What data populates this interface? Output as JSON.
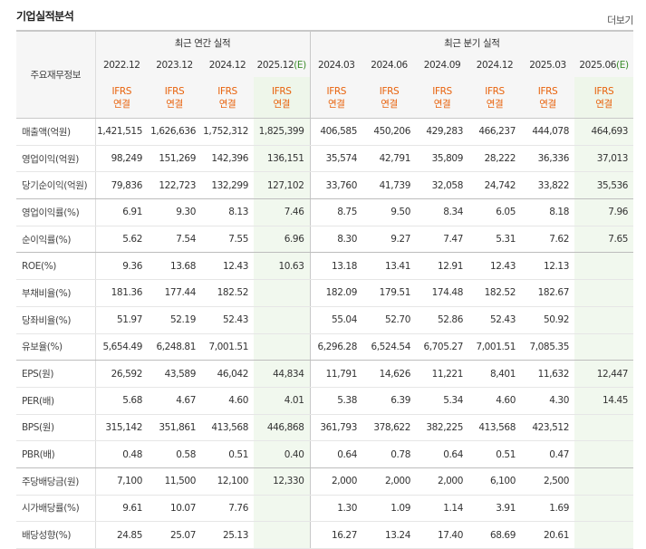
{
  "page": {
    "title": "기업실적분석",
    "more_label": "더보기"
  },
  "table": {
    "row_header": "주요재무정보",
    "annual_group": "최근 연간 실적",
    "quarter_group": "최근 분기 실적",
    "estimate_mark": "(E)",
    "annual_periods": [
      "2022.12",
      "2023.12",
      "2024.12",
      "2025.12"
    ],
    "quarter_periods": [
      "2024.03",
      "2024.06",
      "2024.09",
      "2024.12",
      "2025.03",
      "2025.06"
    ],
    "basis_label_1": "IFRS",
    "basis_label_2": "연결",
    "rows": [
      {
        "label": "매출액(억원)",
        "values": [
          "1,421,515",
          "1,626,636",
          "1,752,312",
          "1,825,399",
          "406,585",
          "450,206",
          "429,283",
          "466,237",
          "444,078",
          "464,693"
        ]
      },
      {
        "label": "영업이익(억원)",
        "values": [
          "98,249",
          "151,269",
          "142,396",
          "136,151",
          "35,574",
          "42,791",
          "35,809",
          "28,222",
          "36,336",
          "37,013"
        ]
      },
      {
        "label": "당기순이익(억원)",
        "values": [
          "79,836",
          "122,723",
          "132,299",
          "127,102",
          "33,760",
          "41,739",
          "32,058",
          "24,742",
          "33,822",
          "35,536"
        ]
      },
      {
        "label": "영업이익률(%)",
        "values": [
          "6.91",
          "9.30",
          "8.13",
          "7.46",
          "8.75",
          "9.50",
          "8.34",
          "6.05",
          "8.18",
          "7.96"
        ]
      },
      {
        "label": "순이익률(%)",
        "values": [
          "5.62",
          "7.54",
          "7.55",
          "6.96",
          "8.30",
          "9.27",
          "7.47",
          "5.31",
          "7.62",
          "7.65"
        ]
      },
      {
        "label": "ROE(%)",
        "values": [
          "9.36",
          "13.68",
          "12.43",
          "10.63",
          "13.18",
          "13.41",
          "12.91",
          "12.43",
          "12.13",
          ""
        ]
      },
      {
        "label": "부채비율(%)",
        "values": [
          "181.36",
          "177.44",
          "182.52",
          "",
          "182.09",
          "179.51",
          "174.48",
          "182.52",
          "182.67",
          ""
        ]
      },
      {
        "label": "당좌비율(%)",
        "values": [
          "51.97",
          "52.19",
          "52.43",
          "",
          "55.04",
          "52.70",
          "52.86",
          "52.43",
          "50.92",
          ""
        ]
      },
      {
        "label": "유보율(%)",
        "values": [
          "5,654.49",
          "6,248.81",
          "7,001.51",
          "",
          "6,296.28",
          "6,524.54",
          "6,705.27",
          "7,001.51",
          "7,085.35",
          ""
        ]
      },
      {
        "label": "EPS(원)",
        "values": [
          "26,592",
          "43,589",
          "46,042",
          "44,834",
          "11,791",
          "14,626",
          "11,221",
          "8,401",
          "11,632",
          "12,447"
        ]
      },
      {
        "label": "PER(배)",
        "values": [
          "5.68",
          "4.67",
          "4.60",
          "4.01",
          "5.38",
          "6.39",
          "5.34",
          "4.60",
          "4.30",
          "14.45"
        ]
      },
      {
        "label": "BPS(원)",
        "values": [
          "315,142",
          "351,861",
          "413,568",
          "446,868",
          "361,793",
          "378,622",
          "382,225",
          "413,568",
          "423,512",
          ""
        ]
      },
      {
        "label": "PBR(배)",
        "values": [
          "0.48",
          "0.58",
          "0.51",
          "0.40",
          "0.64",
          "0.78",
          "0.64",
          "0.51",
          "0.47",
          ""
        ]
      },
      {
        "label": "주당배당금(원)",
        "values": [
          "7,100",
          "11,500",
          "12,100",
          "12,330",
          "2,000",
          "2,000",
          "2,000",
          "6,100",
          "2,500",
          ""
        ]
      },
      {
        "label": "시가배당률(%)",
        "values": [
          "9.61",
          "10.07",
          "7.76",
          "",
          "1.30",
          "1.09",
          "1.14",
          "3.91",
          "1.69",
          ""
        ]
      },
      {
        "label": "배당성향(%)",
        "values": [
          "24.85",
          "25.07",
          "25.13",
          "",
          "16.27",
          "13.24",
          "17.40",
          "68.69",
          "20.61",
          ""
        ]
      }
    ]
  }
}
